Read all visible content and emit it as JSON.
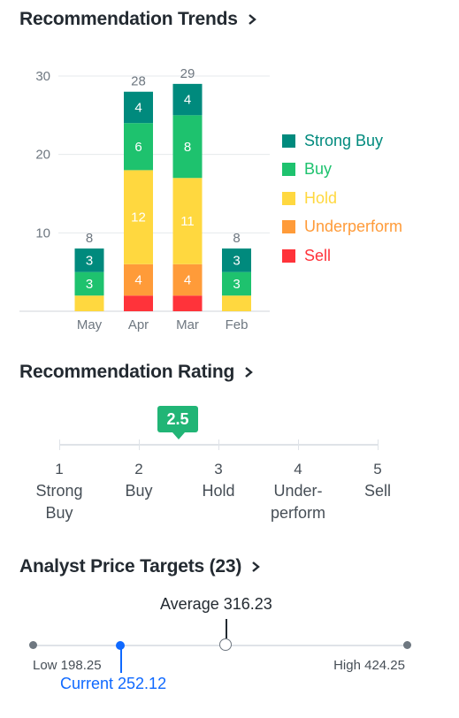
{
  "trends": {
    "title": "Recommendation Trends",
    "chart_data": {
      "type": "bar",
      "stacked": true,
      "categories": [
        "May",
        "Apr",
        "Mar",
        "Feb"
      ],
      "series": [
        {
          "name": "Sell",
          "color": "#ff333a",
          "values": [
            0,
            2,
            2,
            0
          ]
        },
        {
          "name": "Underperform",
          "color": "#ff9b39",
          "values": [
            0,
            4,
            4,
            0
          ]
        },
        {
          "name": "Hold",
          "color": "#ffd83f",
          "values": [
            2,
            12,
            11,
            2
          ]
        },
        {
          "name": "Buy",
          "color": "#1ec26e",
          "values": [
            3,
            6,
            8,
            3
          ]
        },
        {
          "name": "Strong Buy",
          "color": "#008a7d",
          "values": [
            3,
            4,
            4,
            3
          ]
        }
      ],
      "segment_labels": [
        {
          "category": "May",
          "labels": [
            "",
            "",
            "",
            "3",
            "3"
          ]
        },
        {
          "category": "Apr",
          "labels": [
            "",
            "4",
            "12",
            "6",
            "4"
          ]
        },
        {
          "category": "Mar",
          "labels": [
            "",
            "4",
            "11",
            "8",
            "4"
          ]
        },
        {
          "category": "Feb",
          "labels": [
            "",
            "",
            "",
            "3",
            "3"
          ]
        }
      ],
      "totals": [
        "8",
        "28",
        "29",
        "8"
      ],
      "yticks": [
        "10",
        "20",
        "30"
      ],
      "ylim": [
        0,
        30
      ],
      "grid": true,
      "legend_position": "right"
    },
    "legend": [
      {
        "label": "Strong Buy",
        "color": "#008a7d",
        "text_color": "#008a7d"
      },
      {
        "label": "Buy",
        "color": "#1ec26e",
        "text_color": "#1ec26e"
      },
      {
        "label": "Hold",
        "color": "#ffd83f",
        "text_color": "#ffd83f"
      },
      {
        "label": "Underperform",
        "color": "#ff9b39",
        "text_color": "#ff9b39"
      },
      {
        "label": "Sell",
        "color": "#ff333a",
        "text_color": "#ff333a"
      }
    ]
  },
  "rating": {
    "title": "Recommendation Rating",
    "value": "2.5",
    "value_numeric": 2.5,
    "scale": [
      {
        "num": "1",
        "label": "Strong Buy"
      },
      {
        "num": "2",
        "label": "Buy"
      },
      {
        "num": "3",
        "label": "Hold"
      },
      {
        "num": "4",
        "label": "Under-perform"
      },
      {
        "num": "5",
        "label": "Sell"
      }
    ]
  },
  "targets": {
    "title": "Analyst Price Targets (23)",
    "average_label": "Average 316.23",
    "low_label": "Low 198.25",
    "high_label": "High 424.25",
    "current_label": "Current 252.12",
    "low": 198.25,
    "high": 424.25,
    "average": 316.23,
    "current": 252.12
  },
  "icons": {
    "chevron": "chevron-right-icon"
  }
}
